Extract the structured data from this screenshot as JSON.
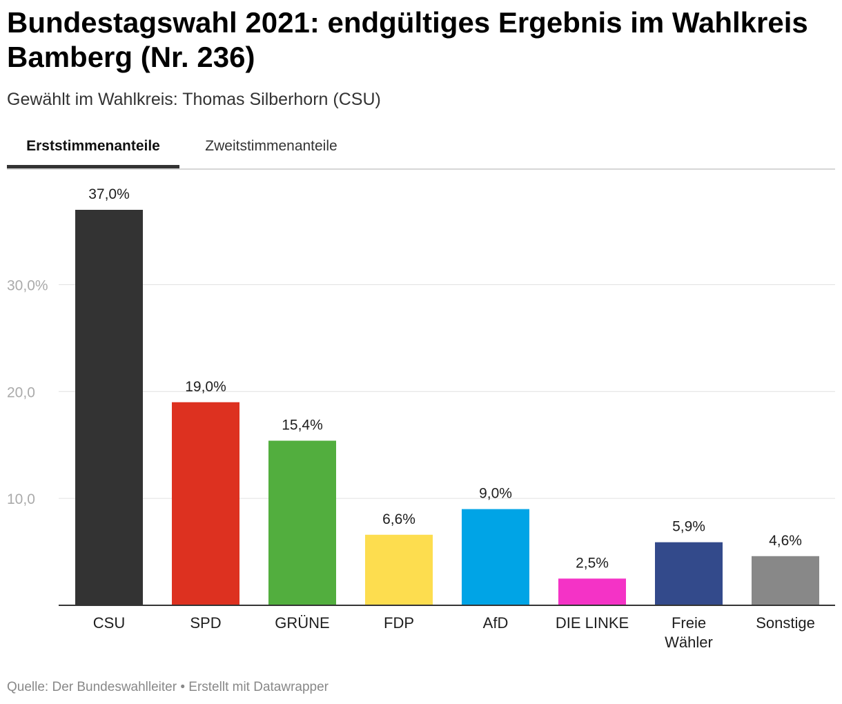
{
  "title": "Bundestagswahl 2021: endgültiges Ergebnis im Wahlkreis Bamberg (Nr. 236)",
  "subtitle": "Gewählt im Wahlkreis: Thomas Silberhorn (CSU)",
  "tabs": [
    {
      "label": "Erststimmenanteile",
      "active": true
    },
    {
      "label": "Zweitstimmenanteile",
      "active": false
    }
  ],
  "footer": "Quelle: Der Bundeswahlleiter • Erstellt mit Datawrapper",
  "chart_data": {
    "type": "bar",
    "categories": [
      "CSU",
      "SPD",
      "GRÜNE",
      "FDP",
      "AfD",
      "DIE LINKE",
      "Freie Wähler",
      "Sonstige"
    ],
    "category_label_lines": [
      [
        "CSU"
      ],
      [
        "SPD"
      ],
      [
        "GRÜNE"
      ],
      [
        "FDP"
      ],
      [
        "AfD"
      ],
      [
        "DIE LINKE"
      ],
      [
        "Freie",
        "Wähler"
      ],
      [
        "Sonstige"
      ]
    ],
    "values": [
      37.0,
      19.0,
      15.4,
      6.6,
      9.0,
      2.5,
      5.9,
      4.6
    ],
    "value_labels": [
      "37,0%",
      "19,0%",
      "15,4%",
      "6,6%",
      "9,0%",
      "2,5%",
      "5,9%",
      "4,6%"
    ],
    "colors": [
      "#333333",
      "#dd3120",
      "#52ae3e",
      "#fddd4f",
      "#00a4e6",
      "#f433c6",
      "#334a8b",
      "#888888"
    ],
    "yticks": [
      10,
      20,
      30
    ],
    "ytick_labels": [
      "10,0",
      "20,0",
      "30,0%"
    ],
    "ylim": [
      0,
      37.0
    ],
    "grid": true,
    "legend": "none"
  }
}
